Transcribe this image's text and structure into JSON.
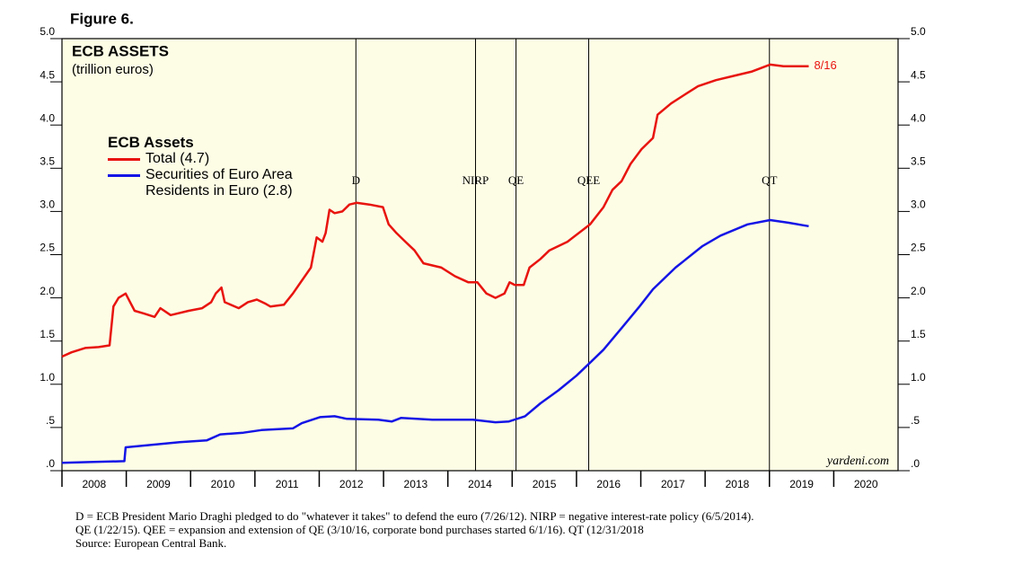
{
  "chart_data": {
    "type": "line",
    "figure_label": "Figure 6.",
    "title": "ECB ASSETS",
    "subtitle": "(trillion euros)",
    "legend_title": "ECB Assets",
    "end_label": "8/16",
    "watermark": "yardeni.com",
    "xlim": [
      2008,
      2021
    ],
    "xticks": [
      {
        "value": 2008,
        "label": "2008"
      },
      {
        "value": 2009,
        "label": "2009"
      },
      {
        "value": 2010,
        "label": "2010"
      },
      {
        "value": 2011,
        "label": "2011"
      },
      {
        "value": 2012,
        "label": "2012"
      },
      {
        "value": 2013,
        "label": "2013"
      },
      {
        "value": 2014,
        "label": "2014"
      },
      {
        "value": 2015,
        "label": "2015"
      },
      {
        "value": 2016,
        "label": "2016"
      },
      {
        "value": 2017,
        "label": "2017"
      },
      {
        "value": 2018,
        "label": "2018"
      },
      {
        "value": 2019,
        "label": "2019"
      },
      {
        "value": 2020,
        "label": "2020"
      }
    ],
    "ylim": [
      0,
      5
    ],
    "yticks": [
      {
        "value": 0,
        "label": ".0"
      },
      {
        "value": 0.5,
        "label": ".5"
      },
      {
        "value": 1,
        "label": "1.0"
      },
      {
        "value": 1.5,
        "label": "1.5"
      },
      {
        "value": 2,
        "label": "2.0"
      },
      {
        "value": 2.5,
        "label": "2.5"
      },
      {
        "value": 3,
        "label": "3.0"
      },
      {
        "value": 3.5,
        "label": "3.5"
      },
      {
        "value": 4,
        "label": "4.0"
      },
      {
        "value": 4.5,
        "label": "4.5"
      },
      {
        "value": 5,
        "label": "5.0"
      }
    ],
    "events": [
      {
        "label": "D",
        "x": 2012.57
      },
      {
        "label": "NIRP",
        "x": 2014.43
      },
      {
        "label": "QE",
        "x": 2015.06
      },
      {
        "label": "QEE",
        "x": 2016.19
      },
      {
        "label": "QT",
        "x": 2019.0
      }
    ],
    "series": [
      {
        "name": "Total (4.7)",
        "color": "#e8140f",
        "x": [
          2008.0,
          2008.15,
          2008.36,
          2008.57,
          2008.74,
          2008.8,
          2008.88,
          2008.99,
          2009.06,
          2009.13,
          2009.27,
          2009.44,
          2009.53,
          2009.69,
          2009.97,
          2010.18,
          2010.32,
          2010.39,
          2010.48,
          2010.53,
          2010.75,
          2010.89,
          2011.03,
          2011.17,
          2011.24,
          2011.45,
          2011.59,
          2011.73,
          2011.87,
          2011.96,
          2012.05,
          2012.1,
          2012.16,
          2012.24,
          2012.36,
          2012.47,
          2012.58,
          2012.78,
          2012.99,
          2013.08,
          2013.2,
          2013.34,
          2013.48,
          2013.62,
          2013.9,
          2014.11,
          2014.32,
          2014.46,
          2014.6,
          2014.74,
          2014.88,
          2014.96,
          2015.04,
          2015.18,
          2015.27,
          2015.44,
          2015.58,
          2015.86,
          2016.21,
          2016.42,
          2016.56,
          2016.7,
          2016.84,
          2017.01,
          2017.19,
          2017.26,
          2017.47,
          2017.68,
          2017.89,
          2018.17,
          2018.45,
          2018.73,
          2018.94,
          2019.01,
          2019.22,
          2019.61
        ],
        "values": [
          1.32,
          1.37,
          1.42,
          1.43,
          1.45,
          1.9,
          2.0,
          2.05,
          1.95,
          1.85,
          1.82,
          1.78,
          1.88,
          1.8,
          1.85,
          1.88,
          1.95,
          2.05,
          2.12,
          1.95,
          1.88,
          1.95,
          1.98,
          1.93,
          1.9,
          1.92,
          2.05,
          2.2,
          2.35,
          2.7,
          2.65,
          2.75,
          3.02,
          2.98,
          3.0,
          3.08,
          3.1,
          3.08,
          3.05,
          2.85,
          2.75,
          2.65,
          2.55,
          2.4,
          2.35,
          2.25,
          2.18,
          2.18,
          2.05,
          2.0,
          2.05,
          2.18,
          2.15,
          2.15,
          2.35,
          2.45,
          2.55,
          2.65,
          2.85,
          3.05,
          3.25,
          3.35,
          3.55,
          3.72,
          3.85,
          4.12,
          4.25,
          4.35,
          4.45,
          4.52,
          4.57,
          4.62,
          4.68,
          4.7,
          4.68,
          4.68
        ]
      },
      {
        "name": "Securities of Euro Area Residents in Euro (2.8)",
        "color": "#1414e6",
        "x": [
          2008.0,
          2008.43,
          2008.97,
          2008.99,
          2009.41,
          2009.83,
          2010.25,
          2010.46,
          2010.82,
          2011.1,
          2011.59,
          2011.73,
          2012.01,
          2012.24,
          2012.43,
          2012.92,
          2013.13,
          2013.27,
          2013.76,
          2014.39,
          2014.74,
          2014.95,
          2015.2,
          2015.44,
          2015.72,
          2016.0,
          2016.21,
          2016.42,
          2016.7,
          2016.98,
          2017.19,
          2017.54,
          2017.96,
          2018.24,
          2018.66,
          2019.01,
          2019.29,
          2019.61
        ],
        "values": [
          0.09,
          0.1,
          0.11,
          0.27,
          0.3,
          0.33,
          0.35,
          0.42,
          0.44,
          0.47,
          0.49,
          0.55,
          0.62,
          0.63,
          0.6,
          0.59,
          0.57,
          0.61,
          0.59,
          0.59,
          0.56,
          0.57,
          0.63,
          0.78,
          0.93,
          1.1,
          1.25,
          1.4,
          1.65,
          1.9,
          2.1,
          2.35,
          2.6,
          2.72,
          2.85,
          2.9,
          2.87,
          2.83
        ]
      }
    ],
    "notes": [
      "D = ECB President Mario Draghi pledged to do \"whatever it takes\" to defend the euro (7/26/12). NIRP = negative interest-rate policy (6/5/2014).",
      "QE (1/22/15). QEE = expansion and extension of QE (3/10/16, corporate bond purchases started 6/1/16). QT (12/31/2018",
      "Source: European Central Bank."
    ]
  }
}
